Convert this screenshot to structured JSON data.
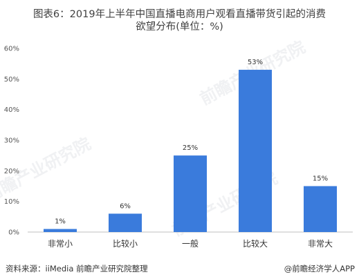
{
  "chart_data": {
    "type": "bar",
    "title": "图表6：2019年上半年中国直播电商用户观看直播带货引起的消费欲望分布(单位：%)",
    "title_line1": "图表6：2019年上半年中国直播电商用户观看直播带货引起的消费",
    "title_line2": "欲望分布(单位：%)",
    "categories": [
      "非常小",
      "比较小",
      "一般",
      "比较大",
      "非常大"
    ],
    "values": [
      1,
      6,
      25,
      53,
      15
    ],
    "data_labels": [
      "1%",
      "6%",
      "25%",
      "53%",
      "15%"
    ],
    "ylim": [
      0,
      60
    ],
    "yticks": [
      "0%",
      "10%",
      "20%",
      "30%",
      "40%",
      "50%",
      "60%"
    ],
    "xlabel": "",
    "ylabel": "",
    "grid": false,
    "bar_color": "#3a7bdc"
  },
  "footer": {
    "source": "资料来源：iiMedia 前瞻产业研究院整理",
    "brand": "@前瞻经济学人APP"
  },
  "watermark": "前瞻产业研究院"
}
